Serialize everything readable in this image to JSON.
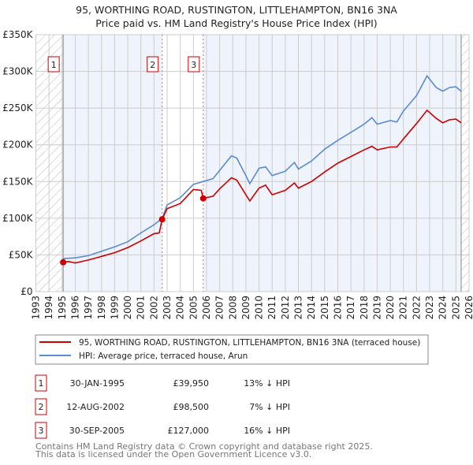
{
  "chart_data": {
    "type": "line",
    "title": "95, WORTHING ROAD, RUSTINGTON, LITTLEHAMPTON, BN16 3NA",
    "subtitle": "Price paid vs. HM Land Registry's House Price Index (HPI)",
    "xlim": [
      1993,
      2026
    ],
    "ylim": [
      0,
      350000
    ],
    "grid": true,
    "x_ticks": [
      "1993",
      "1994",
      "1995",
      "1996",
      "1997",
      "1998",
      "1999",
      "2000",
      "2001",
      "2002",
      "2003",
      "2004",
      "2005",
      "2006",
      "2007",
      "2008",
      "2009",
      "2010",
      "2011",
      "2012",
      "2013",
      "2014",
      "2015",
      "2016",
      "2017",
      "2018",
      "2019",
      "2020",
      "2021",
      "2022",
      "2023",
      "2024",
      "2025",
      "2026"
    ],
    "y_ticks": [
      {
        "v": 0,
        "label": "£0"
      },
      {
        "v": 50000,
        "label": "£50K"
      },
      {
        "v": 100000,
        "label": "£100K"
      },
      {
        "v": 150000,
        "label": "£150K"
      },
      {
        "v": 200000,
        "label": "£200K"
      },
      {
        "v": 250000,
        "label": "£250K"
      },
      {
        "v": 300000,
        "label": "£300K"
      },
      {
        "v": 350000,
        "label": "£350K"
      }
    ],
    "data_range": [
      1995.08,
      2025.4
    ],
    "series": [
      {
        "name": "95, WORTHING ROAD, RUSTINGTON, LITTLEHAMPTON, BN16 3NA (terraced house)",
        "color": "#cc0000",
        "x": [
          1995.08,
          1995.5,
          1996,
          1997,
          1998,
          1999,
          2000,
          2001,
          2002,
          2002.4,
          2002.62,
          2003,
          2004,
          2005,
          2005.6,
          2005.75,
          2006.5,
          2007,
          2007.9,
          2008.3,
          2009,
          2009.3,
          2010,
          2010.5,
          2011,
          2012,
          2012.7,
          2013,
          2014,
          2015,
          2016,
          2017,
          2018,
          2018.6,
          2019,
          2020,
          2020.5,
          2021,
          2022,
          2022.8,
          2023.5,
          2024,
          2024.5,
          2025,
          2025.4
        ],
        "y": [
          39950,
          41000,
          39000,
          43000,
          48000,
          53000,
          60000,
          69000,
          79000,
          80000,
          98500,
          113000,
          120000,
          139000,
          138000,
          127000,
          130000,
          140000,
          155000,
          152000,
          132000,
          123500,
          141000,
          145000,
          132000,
          138000,
          148000,
          141000,
          150000,
          163000,
          175000,
          184000,
          193000,
          198000,
          193000,
          197000,
          197000,
          208000,
          229000,
          247000,
          236000,
          230000,
          234000,
          235000,
          230000
        ]
      },
      {
        "name": "HPI: Average price, terraced house, Arun",
        "color": "#5b8bd0",
        "x": [
          1995.08,
          1996,
          1997,
          1998,
          1999,
          2000,
          2001,
          2002,
          2002.62,
          2003,
          2004,
          2005,
          2005.75,
          2006.5,
          2007,
          2007.9,
          2008.3,
          2009,
          2009.3,
          2010,
          2010.5,
          2011,
          2012,
          2012.7,
          2013,
          2014,
          2015,
          2016,
          2017,
          2018,
          2018.6,
          2019,
          2020,
          2020.5,
          2021,
          2022,
          2022.8,
          2023.5,
          2024,
          2024.5,
          2025,
          2025.4
        ],
        "y": [
          45000,
          46000,
          49000,
          55000,
          61000,
          68000,
          80000,
          91000,
          100000,
          118000,
          128000,
          146000,
          150000,
          154000,
          165000,
          185000,
          182000,
          158000,
          147000,
          168000,
          170000,
          158000,
          164000,
          176000,
          167000,
          178000,
          194000,
          206000,
          217000,
          228000,
          237000,
          228000,
          233000,
          231000,
          246000,
          267000,
          294000,
          278000,
          273000,
          278000,
          279000,
          273000
        ]
      }
    ],
    "sales": [
      {
        "n": "1",
        "x": 1995.08,
        "price": 39950,
        "date": "30-JAN-1995",
        "price_label": "£39,950",
        "hpi": "13% ↓ HPI"
      },
      {
        "n": "2",
        "x": 2002.62,
        "price": 98500,
        "date": "12-AUG-2002",
        "price_label": "£98,500",
        "hpi": "7% ↓ HPI"
      },
      {
        "n": "3",
        "x": 2005.75,
        "price": 127000,
        "date": "30-SEP-2005",
        "price_label": "£127,000",
        "hpi": "16% ↓ HPI"
      }
    ],
    "legend_placement": "bottom"
  },
  "footer": {
    "line1": "Contains HM Land Registry data © Crown copyright and database right 2025.",
    "line2": "This data is licensed under the Open Government Licence v3.0."
  },
  "colors": {
    "red": "#cc0000",
    "blue": "#5b8bd0",
    "fill": "#eef3fc",
    "grid": "#cccccc"
  }
}
